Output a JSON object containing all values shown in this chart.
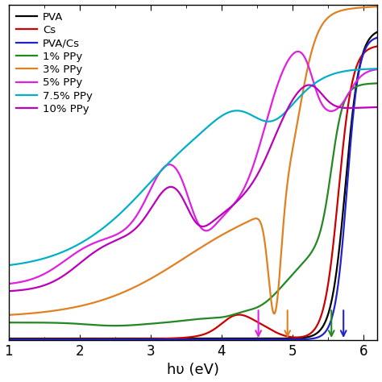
{
  "xlabel": "hυ (eV)",
  "xlim": [
    1,
    6.2
  ],
  "ylim": [
    0,
    1.05
  ],
  "legend_labels": [
    "PVA",
    "Cs",
    "PVA/Cs",
    "1% PPy",
    "3% PPy",
    "5% PPy",
    "7.5% PPy",
    "10% PPy"
  ],
  "colors": [
    "black",
    "#cc0000",
    "#2222cc",
    "#228822",
    "#e08020",
    "#e020e0",
    "#00b0c8",
    "#bb00bb"
  ],
  "background": "white",
  "arrow_data": [
    {
      "x": 4.52,
      "color": "#e020e0"
    },
    {
      "x": 4.93,
      "color": "#e08020"
    },
    {
      "x": 5.55,
      "color": "#228822"
    },
    {
      "x": 5.72,
      "color": "#2222cc"
    }
  ]
}
